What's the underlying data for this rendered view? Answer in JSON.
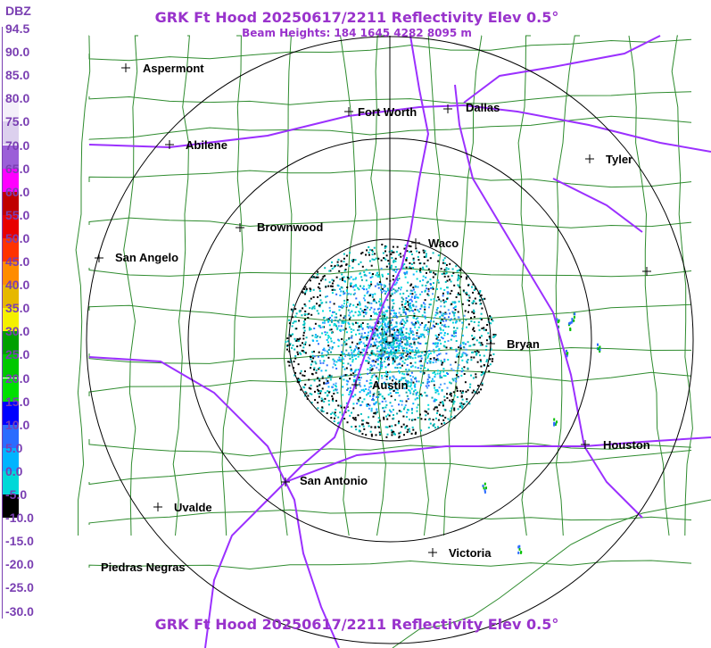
{
  "header": {
    "title": "GRK Ft Hood 20250617/2211 Reflectivity Elev 0.5°",
    "subtitle": "Beam Heights: 184 1645 4282 8095 m",
    "footer_title": "GRK Ft Hood 20250617/2211 Reflectivity Elev 0.5°"
  },
  "legend": {
    "unit": "DBZ",
    "levels": [
      {
        "label": "94.5",
        "color": "#ffffff"
      },
      {
        "label": "90.0",
        "color": "#ffffff"
      },
      {
        "label": "85.0",
        "color": "#ffffff"
      },
      {
        "label": "80.0",
        "color": "#f4f0fa"
      },
      {
        "label": "75.0",
        "color": "#dcd0ee"
      },
      {
        "label": "70.0",
        "color": "#9b5fd8"
      },
      {
        "label": "65.0",
        "color": "#ff00ff"
      },
      {
        "label": "60.0",
        "color": "#c00000"
      },
      {
        "label": "55.0",
        "color": "#e80000"
      },
      {
        "label": "50.0",
        "color": "#ff3300"
      },
      {
        "label": "45.0",
        "color": "#ff8c00"
      },
      {
        "label": "40.0",
        "color": "#e6b800"
      },
      {
        "label": "35.0",
        "color": "#f5f000"
      },
      {
        "label": "30.0",
        "color": "#00a000"
      },
      {
        "label": "25.0",
        "color": "#00c800"
      },
      {
        "label": "20.0",
        "color": "#00e000"
      },
      {
        "label": "15.0",
        "color": "#0000ff"
      },
      {
        "label": "10.0",
        "color": "#2b6cff"
      },
      {
        "label": "5.0",
        "color": "#00b4ff"
      },
      {
        "label": "0.0",
        "color": "#00d8d8"
      },
      {
        "label": "-5.0",
        "color": "#000000"
      },
      {
        "label": "-10.0",
        "color": "#ffffff"
      },
      {
        "label": "-15.0",
        "color": "#ffffff"
      },
      {
        "label": "-20.0",
        "color": "#ffffff"
      },
      {
        "label": "-25.0",
        "color": "#ffffff"
      },
      {
        "label": "-30.0",
        "color": "#ffffff"
      }
    ]
  },
  "cities": [
    {
      "name": "Aspermont"
    },
    {
      "name": "Fort Worth"
    },
    {
      "name": "Dallas"
    },
    {
      "name": "Abilene"
    },
    {
      "name": "Tyler"
    },
    {
      "name": "Brownwood"
    },
    {
      "name": "Waco"
    },
    {
      "name": "San Angelo"
    },
    {
      "name": "Bryan"
    },
    {
      "name": "Austin"
    },
    {
      "name": "Houston"
    },
    {
      "name": "San Antonio"
    },
    {
      "name": "Uvalde"
    },
    {
      "name": "Victoria"
    },
    {
      "name": "Piedras Negras"
    },
    {
      "name": ""
    }
  ],
  "colors": {
    "accent": "#9933cc",
    "county_lines": "#2e8b2e",
    "highways": "#9b30ff",
    "range_rings": "#000000"
  }
}
